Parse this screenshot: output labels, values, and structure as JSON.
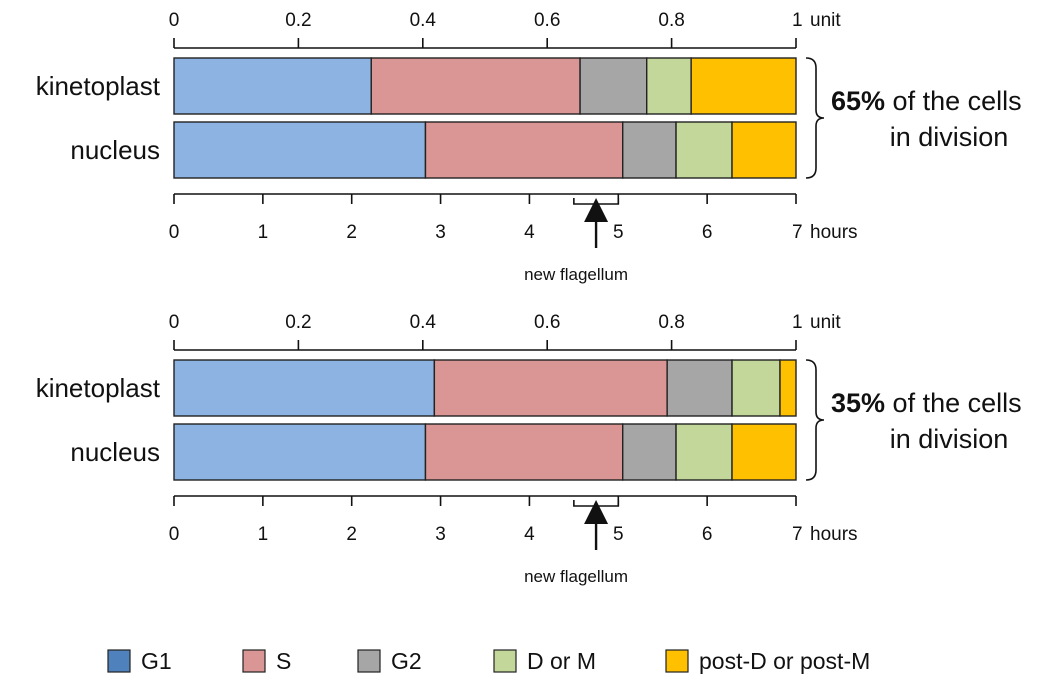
{
  "chart_data": {
    "type": "bar",
    "orientation": "horizontal-stacked",
    "phases": [
      {
        "name": "G1",
        "color": "#8DB3E2"
      },
      {
        "name": "S",
        "color": "#DA9694"
      },
      {
        "name": "G2",
        "color": "#A6A6A6"
      },
      {
        "name": "D or M",
        "color": "#C4D79B"
      },
      {
        "name": "post-D or post-M",
        "color": "#FFC000"
      }
    ],
    "legend_swatch_colors": [
      "#4F81BD",
      "#DA9694",
      "#A6A6A6",
      "#C4D79B",
      "#FFC000"
    ],
    "legend_position": "bottom",
    "top_axis": {
      "unit_label": "unit",
      "ticks": [
        "0",
        "0.2",
        "0.4",
        "0.6",
        "0.8",
        "1"
      ],
      "range": [
        0,
        1
      ]
    },
    "bottom_axis": {
      "unit_label": "hours",
      "ticks": [
        "0",
        "1",
        "2",
        "3",
        "4",
        "5",
        "6",
        "7"
      ],
      "range": [
        0,
        7
      ]
    },
    "panels": [
      {
        "note_value": "65%",
        "note_line1": "of the cells",
        "note_line2": "in division",
        "marker_label": "new flagellum",
        "marker_hours": 4.75,
        "marker_range_hours": [
          4.5,
          5.0
        ],
        "rows": [
          {
            "label": "kinetoplast",
            "values": [
              2.22,
              2.35,
              0.75,
              0.5,
              1.18
            ]
          },
          {
            "label": "nucleus",
            "values": [
              2.83,
              2.22,
              0.6,
              0.63,
              0.72
            ]
          }
        ]
      },
      {
        "note_value": "35%",
        "note_line1": "of the cells",
        "note_line2": "in division",
        "marker_label": "new flagellum",
        "marker_hours": 4.75,
        "marker_range_hours": [
          4.5,
          5.0
        ],
        "rows": [
          {
            "label": "kinetoplast",
            "values": [
              2.93,
              2.62,
              0.73,
              0.54,
              0.18
            ]
          },
          {
            "label": "nucleus",
            "values": [
              2.83,
              2.22,
              0.6,
              0.63,
              0.72
            ]
          }
        ]
      }
    ]
  }
}
